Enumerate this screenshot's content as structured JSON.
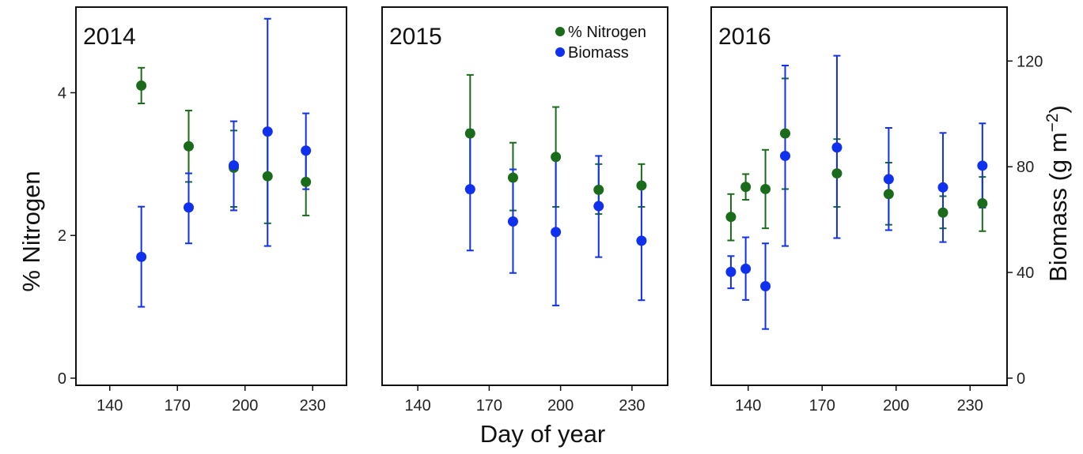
{
  "chart_data": {
    "type": "scatter",
    "xlabel": "Day of year",
    "ylabel_left": "% Nitrogen",
    "ylabel_right_base": "Biomass (g m",
    "ylabel_right_sup": "−2",
    "ylabel_right_end": ")",
    "x_ticks": [
      "140",
      "170",
      "200",
      "230"
    ],
    "y_left_ticks": [
      "0",
      "2",
      "4"
    ],
    "y_right_ticks": [
      "0",
      "40",
      "80",
      "120"
    ],
    "xlim": [
      125,
      245
    ],
    "ylim_left": [
      -0.1,
      5.2
    ],
    "ylim_right": [
      -2.7,
      140.4
    ],
    "legend": {
      "position": "top-right of middle panel",
      "entries": [
        {
          "label": "% Nitrogen",
          "color": "#1a6b1a"
        },
        {
          "label": "Biomass",
          "color": "#1030f0"
        }
      ]
    },
    "colors": {
      "nitrogen": "#1a6b1a",
      "biomass": "#1030f0"
    },
    "panels": [
      {
        "label": "2014",
        "nitrogen": [
          {
            "x": 154,
            "y": 4.1,
            "lo": 3.85,
            "hi": 4.35
          },
          {
            "x": 175,
            "y": 3.25,
            "lo": 2.75,
            "hi": 3.75
          },
          {
            "x": 195,
            "y": 2.95,
            "lo": 2.4,
            "hi": 3.47
          },
          {
            "x": 210,
            "y": 2.83,
            "lo": 2.17,
            "hi": 3.48
          },
          {
            "x": 227,
            "y": 2.75,
            "lo": 2.28,
            "hi": 3.2
          }
        ],
        "biomass": [
          {
            "x": 154,
            "y": 45.9,
            "lo": 27.0,
            "hi": 64.9
          },
          {
            "x": 175,
            "y": 64.6,
            "lo": 51.0,
            "hi": 77.5
          },
          {
            "x": 195,
            "y": 80.5,
            "lo": 63.5,
            "hi": 97.2
          },
          {
            "x": 210,
            "y": 93.3,
            "lo": 50.0,
            "hi": 136.0
          },
          {
            "x": 227,
            "y": 86.1,
            "lo": 71.5,
            "hi": 100.2
          }
        ]
      },
      {
        "label": "2015",
        "nitrogen": [
          {
            "x": 162,
            "y": 3.43,
            "lo": 2.6,
            "hi": 4.25
          },
          {
            "x": 180,
            "y": 2.81,
            "lo": 2.35,
            "hi": 3.3
          },
          {
            "x": 198,
            "y": 3.1,
            "lo": 2.4,
            "hi": 3.8
          },
          {
            "x": 216,
            "y": 2.64,
            "lo": 2.3,
            "hi": 3.0
          },
          {
            "x": 234,
            "y": 2.7,
            "lo": 2.4,
            "hi": 3.0
          }
        ],
        "biomass": [
          {
            "x": 162,
            "y": 71.5,
            "lo": 48.3,
            "hi": 94.0
          },
          {
            "x": 180,
            "y": 59.3,
            "lo": 39.8,
            "hi": 79.0
          },
          {
            "x": 198,
            "y": 55.3,
            "lo": 27.5,
            "hi": 83.4
          },
          {
            "x": 216,
            "y": 65.1,
            "lo": 45.8,
            "hi": 84.1
          },
          {
            "x": 234,
            "y": 52.0,
            "lo": 29.5,
            "hi": 73.0
          }
        ]
      },
      {
        "label": "2016",
        "nitrogen": [
          {
            "x": 133,
            "y": 2.26,
            "lo": 1.93,
            "hi": 2.58
          },
          {
            "x": 139,
            "y": 2.68,
            "lo": 2.5,
            "hi": 2.86
          },
          {
            "x": 147,
            "y": 2.65,
            "lo": 2.1,
            "hi": 3.2
          },
          {
            "x": 155,
            "y": 3.43,
            "lo": 2.65,
            "hi": 4.2
          },
          {
            "x": 176,
            "y": 2.87,
            "lo": 2.4,
            "hi": 3.35
          },
          {
            "x": 197,
            "y": 2.58,
            "lo": 2.15,
            "hi": 3.02
          },
          {
            "x": 219,
            "y": 2.32,
            "lo": 2.1,
            "hi": 2.55
          },
          {
            "x": 235,
            "y": 2.45,
            "lo": 2.06,
            "hi": 2.82
          }
        ],
        "biomass": [
          {
            "x": 133,
            "y": 40.2,
            "lo": 34.0,
            "hi": 46.2
          },
          {
            "x": 139,
            "y": 41.4,
            "lo": 29.6,
            "hi": 53.3
          },
          {
            "x": 147,
            "y": 34.8,
            "lo": 18.6,
            "hi": 51.0
          },
          {
            "x": 155,
            "y": 84.1,
            "lo": 50.0,
            "hi": 118.3
          },
          {
            "x": 176,
            "y": 87.3,
            "lo": 53.0,
            "hi": 122.0
          },
          {
            "x": 197,
            "y": 75.3,
            "lo": 56.0,
            "hi": 94.7
          },
          {
            "x": 219,
            "y": 72.2,
            "lo": 51.5,
            "hi": 92.8
          },
          {
            "x": 235,
            "y": 80.4,
            "lo": 64.5,
            "hi": 96.4
          }
        ]
      }
    ]
  }
}
